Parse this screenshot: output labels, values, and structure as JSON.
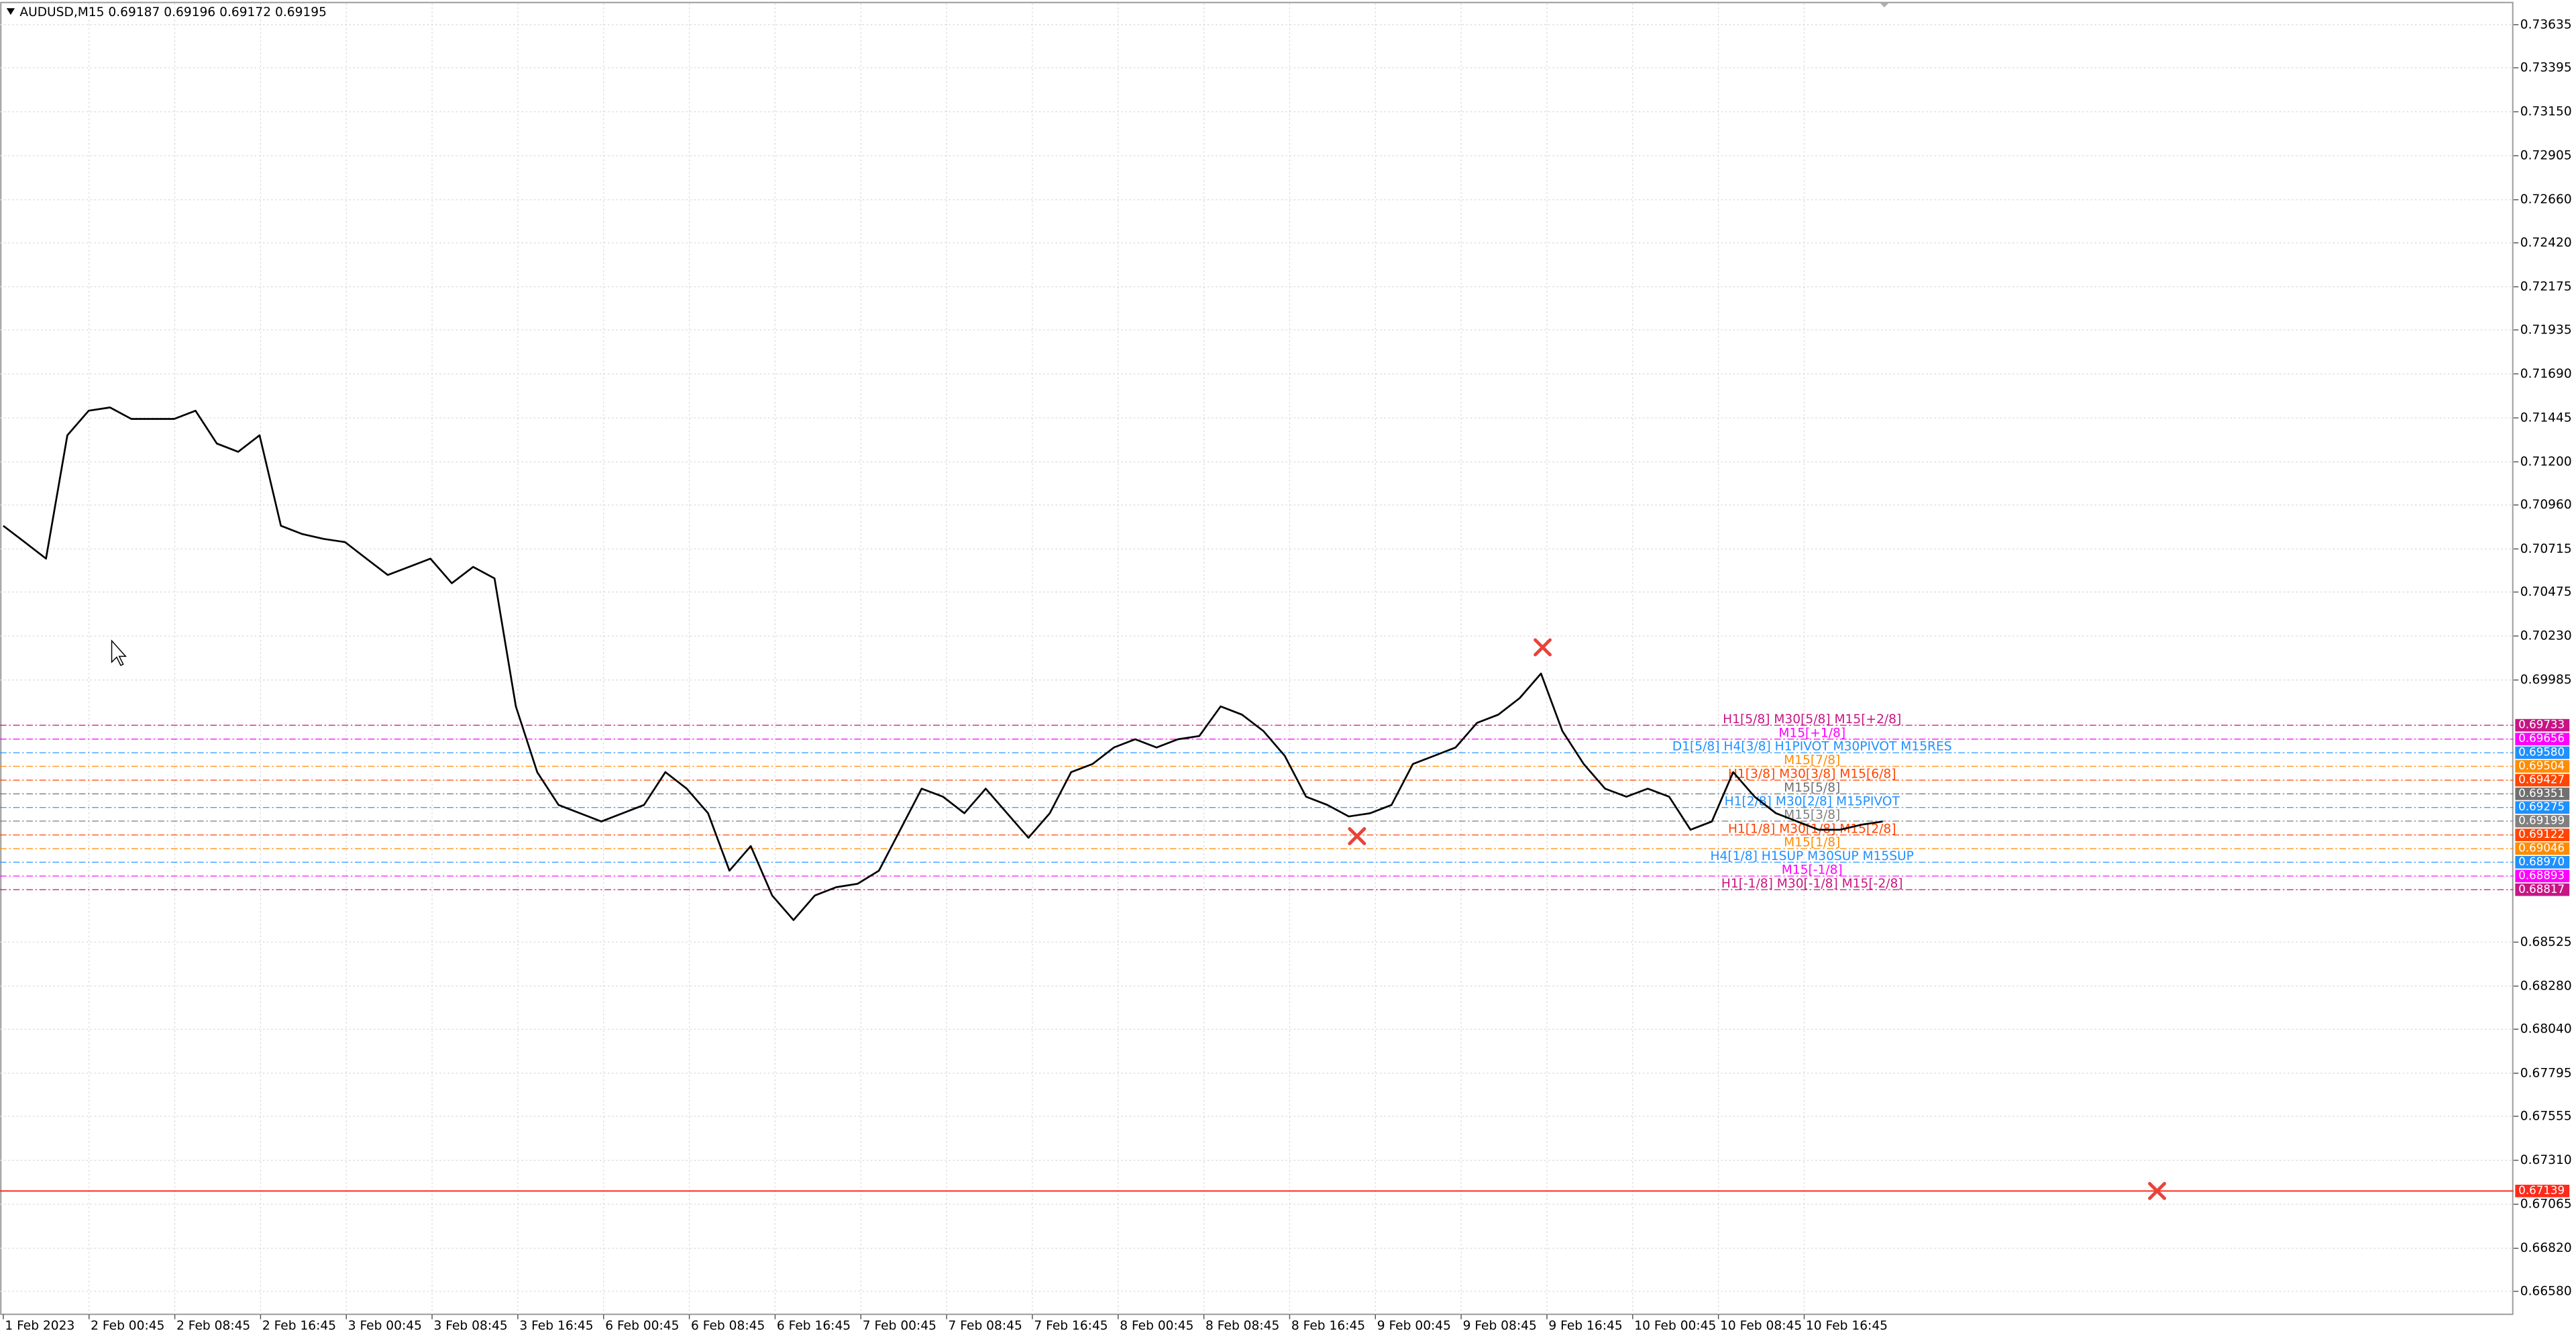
{
  "chart_data": {
    "type": "line",
    "title": "AUDUSD,M15  0.69187 0.69196 0.69172 0.69195",
    "time_labels": [
      "1 Feb 2023",
      "2 Feb 00:45",
      "2 Feb 08:45",
      "2 Feb 16:45",
      "3 Feb 00:45",
      "3 Feb 08:45",
      "3 Feb 16:45",
      "6 Feb 00:45",
      "6 Feb 08:45",
      "6 Feb 16:45",
      "7 Feb 00:45",
      "7 Feb 08:45",
      "7 Feb 16:45",
      "8 Feb 00:45",
      "8 Feb 08:45",
      "8 Feb 16:45",
      "9 Feb 00:45",
      "9 Feb 08:45",
      "9 Feb 16:45",
      "10 Feb 00:45",
      "10 Feb 08:45",
      "10 Feb 16:45"
    ],
    "series": [
      {
        "color": "#000000",
        "values": [
          0.70844,
          0.70753,
          0.70661,
          0.71348,
          0.71485,
          0.71503,
          0.71439,
          0.71439,
          0.71439,
          0.71485,
          0.71302,
          0.71256,
          0.71348,
          0.70844,
          0.70798,
          0.70771,
          0.70753,
          0.70661,
          0.7057,
          0.70615,
          0.70661,
          0.70524,
          0.70615,
          0.70551,
          0.69838,
          0.69472,
          0.69289,
          0.69243,
          0.69197,
          0.69243,
          0.69289,
          0.69472,
          0.6938,
          0.69243,
          0.68923,
          0.6906,
          0.68785,
          0.68648,
          0.68785,
          0.68831,
          0.6885,
          0.68923,
          0.69151,
          0.6938,
          0.69335,
          0.69243,
          0.6938,
          0.69243,
          0.69106,
          0.69243,
          0.69472,
          0.69517,
          0.69609,
          0.69655,
          0.69609,
          0.69655,
          0.69673,
          0.69838,
          0.69792,
          0.69701,
          0.69563,
          0.69335,
          0.69289,
          0.69225,
          0.69243,
          0.69289,
          0.69517,
          0.69563,
          0.69609,
          0.69746,
          0.69792,
          0.69884,
          0.70021,
          0.69701,
          0.69517,
          0.6938,
          0.69335,
          0.6938,
          0.69335,
          0.69151,
          0.69197,
          0.69472,
          0.69335,
          0.69243,
          0.69197,
          0.69151,
          0.69151,
          0.69179,
          0.69197
        ]
      }
    ],
    "ylim": [
      0.66452,
      0.73754
    ],
    "yticks": [
      0.73635,
      0.73395,
      {
        "value": 0.7315,
        "label": "0.73150"
      },
      0.72905,
      {
        "value": 0.7266,
        "label": "0.72660"
      },
      {
        "value": 0.7242,
        "label": "0.72420"
      },
      0.72175,
      0.71935,
      {
        "value": 0.7169,
        "label": "0.71690"
      },
      0.71445,
      {
        "value": 0.712,
        "label": "0.71200"
      },
      {
        "value": 0.7096,
        "label": "0.70960"
      },
      0.70715,
      0.70475,
      {
        "value": 0.7023,
        "label": "0.70230"
      },
      0.69985,
      0.68525,
      {
        "value": 0.6828,
        "label": "0.68280"
      },
      {
        "value": 0.6804,
        "label": "0.68040"
      },
      0.67795,
      0.67555,
      {
        "value": 0.6731,
        "label": "0.67310"
      },
      0.67065,
      {
        "value": 0.6682,
        "label": "0.66820"
      },
      {
        "value": 0.6658,
        "label": "0.66580"
      }
    ],
    "grid": true,
    "levels": {
      "names": [
        "H1[5/8] M30[5/8] M15[+2/8]",
        "M15[+1/8]",
        "D1[5/8] H4[3/8] H1PIVOT M30PIVOT M15RES",
        "M15[7/8]",
        "H1[3/8] M30[3/8] M15[6/8]",
        "M15[5/8]",
        "H1[2/8] M30[2/8] M15PIVOT",
        "M15[3/8]",
        "H1[1/8] M30[1/8] M15[2/8]",
        "M15[1/8]",
        "H4[1/8] H1SUP M30SUP M15SUP",
        "M15[-1/8]",
        "H1[-1/8] M30[-1/8] M15[-2/8]"
      ],
      "values": [
        0.69733,
        0.69656,
        0.6958,
        0.69504,
        0.69427,
        0.69351,
        0.69275,
        0.69199,
        0.69122,
        0.69046,
        0.6897,
        0.68893,
        0.68817
      ],
      "value_labels": [
        "0.69733",
        "0.69656",
        "0.69580",
        "0.69504",
        "0.69427",
        "0.69351",
        "0.69275",
        "0.69199",
        "0.69122",
        "0.69046",
        "0.68970",
        "0.68893",
        "0.68817"
      ],
      "colors": [
        "#c71585",
        "#ff00ff",
        "#1e90ff",
        "#ff8c00",
        "#ff4500",
        "#707070",
        "#1e90ff",
        "#808080",
        "#ff4500",
        "#ff8c00",
        "#1e90ff",
        "#ff00ff",
        "#c71585"
      ]
    },
    "alert_line": {
      "value": 0.67139,
      "value_label": "0.67139",
      "color": "#ff2a1a"
    },
    "markers": {
      "values": [
        0.70167,
        0.69115,
        0.67139
      ],
      "color": "#e8433a"
    }
  }
}
